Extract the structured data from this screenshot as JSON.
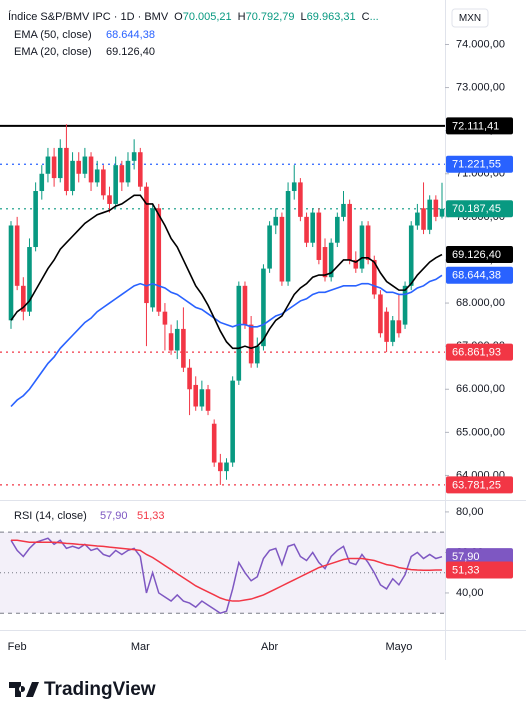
{
  "chart_data": [
    {
      "type": "candlestick",
      "title": "Índice S&P/BMV IPC · 1D · BMV",
      "ohlc_legend": [
        {
          "label": "O",
          "value": "70.005,21"
        },
        {
          "label": "H",
          "value": "70.792,79"
        },
        {
          "label": "L",
          "value": "69.963,31"
        },
        {
          "label": "C",
          "value": "..."
        }
      ],
      "currency": "MXN",
      "up_color": "#089981",
      "down_color": "#f23645",
      "categories": [
        null,
        "Feb",
        null,
        null,
        null,
        null,
        null,
        null,
        null,
        null,
        null,
        null,
        null,
        null,
        null,
        null,
        null,
        null,
        null,
        null,
        null,
        "Mar",
        null,
        null,
        null,
        null,
        null,
        null,
        null,
        null,
        null,
        null,
        null,
        null,
        null,
        null,
        null,
        null,
        null,
        null,
        null,
        null,
        "Abr",
        null,
        null,
        null,
        null,
        null,
        null,
        null,
        null,
        null,
        null,
        null,
        null,
        null,
        null,
        null,
        null,
        null,
        null,
        null,
        null,
        "Mayo",
        null,
        null,
        null,
        null,
        null,
        null,
        null
      ],
      "open": [
        67600,
        69800,
        68400,
        67800,
        69300,
        70600,
        71000,
        71400,
        70900,
        71600,
        70600,
        71300,
        71000,
        71400,
        70800,
        71100,
        70500,
        70300,
        71200,
        70800,
        71300,
        71500,
        70700,
        67900,
        70200,
        67800,
        67300,
        66900,
        67400,
        66500,
        66100,
        65600,
        66000,
        65200,
        64300,
        64100,
        64300,
        66200,
        68400,
        67500,
        66600,
        67000,
        68800,
        69800,
        70000,
        68500,
        70600,
        70800,
        70000,
        69400,
        70100,
        69300,
        68600,
        69400,
        70000,
        70300,
        69000,
        68800,
        69800,
        69000,
        68200,
        67800,
        67100,
        67600,
        67500,
        68400,
        69800,
        70200,
        69700,
        70400,
        70005.21
      ],
      "high": [
        69900,
        70000,
        68600,
        69500,
        70800,
        71200,
        71600,
        71600,
        71800,
        72150,
        71500,
        71500,
        71600,
        71500,
        71300,
        71200,
        70700,
        71400,
        71300,
        71500,
        71800,
        71600,
        70800,
        70300,
        70300,
        68000,
        67500,
        67600,
        67900,
        66700,
        66300,
        66200,
        66100,
        65300,
        64500,
        64400,
        66300,
        68500,
        68500,
        67700,
        67200,
        68900,
        69900,
        70200,
        70100,
        70800,
        71200,
        70900,
        70100,
        70200,
        70200,
        69500,
        69500,
        70100,
        70600,
        70400,
        69200,
        69900,
        69900,
        69100,
        68300,
        67900,
        67700,
        68200,
        68500,
        69900,
        70300,
        70800,
        70500,
        70500,
        70792.79
      ],
      "low": [
        67400,
        68300,
        67600,
        67700,
        69200,
        70400,
        70800,
        70700,
        70800,
        70500,
        70500,
        70800,
        70900,
        70600,
        70700,
        70400,
        70100,
        70200,
        70600,
        70700,
        71100,
        70600,
        67000,
        67800,
        67700,
        66900,
        66800,
        66700,
        66400,
        65400,
        65500,
        65500,
        65400,
        64200,
        63781.25,
        63900,
        64200,
        66100,
        67400,
        66500,
        66500,
        66900,
        68700,
        69600,
        68400,
        68400,
        70400,
        69900,
        69300,
        69300,
        68900,
        68500,
        68500,
        69300,
        69900,
        68900,
        68700,
        68700,
        68900,
        68100,
        67200,
        66861.93,
        67000,
        67200,
        67400,
        68300,
        69700,
        69600,
        69600,
        69900,
        69963.31
      ],
      "close": [
        69800,
        68400,
        67800,
        69300,
        70600,
        71000,
        71400,
        70900,
        71600,
        70600,
        71300,
        71000,
        71400,
        70800,
        71100,
        70500,
        70300,
        71200,
        70800,
        71300,
        71500,
        70700,
        68000,
        70200,
        67800,
        67500,
        66900,
        67400,
        66500,
        66000,
        65600,
        66000,
        65500,
        64300,
        64100,
        64300,
        66200,
        68400,
        67500,
        66600,
        67000,
        68800,
        69800,
        70000,
        68500,
        70600,
        70800,
        70000,
        69400,
        70100,
        69000,
        68600,
        69400,
        70000,
        70300,
        69000,
        68800,
        69800,
        69000,
        68200,
        67300,
        67100,
        67600,
        67300,
        68400,
        69800,
        70100,
        69700,
        70400,
        70000,
        70187.45
      ],
      "series": [
        {
          "name": "EMA (50, close)",
          "color": "#2962ff",
          "last_label": "68.644,38",
          "values": [
            65600,
            65750,
            65850,
            66000,
            66200,
            66400,
            66600,
            66750,
            66950,
            67100,
            67250,
            67400,
            67550,
            67650,
            67800,
            67900,
            68000,
            68100,
            68200,
            68300,
            68400,
            68450,
            68400,
            68450,
            68400,
            68350,
            68250,
            68200,
            68100,
            68000,
            67900,
            67850,
            67750,
            67650,
            67550,
            67500,
            67450,
            67500,
            67500,
            67450,
            67450,
            67500,
            67600,
            67700,
            67750,
            67850,
            67950,
            68050,
            68100,
            68200,
            68250,
            68250,
            68300,
            68350,
            68400,
            68400,
            68400,
            68450,
            68450,
            68400,
            68350,
            68250,
            68250,
            68200,
            68200,
            68250,
            68350,
            68400,
            68500,
            68550,
            68644.38
          ]
        },
        {
          "name": "EMA (20, close)",
          "color": "#000000",
          "last_label": "69.126,40",
          "values": [
            67600,
            67800,
            67900,
            68050,
            68300,
            68550,
            68800,
            69000,
            69250,
            69400,
            69550,
            69700,
            69850,
            69950,
            70050,
            70100,
            70150,
            70250,
            70300,
            70400,
            70500,
            70500,
            70300,
            70300,
            70050,
            69800,
            69500,
            69300,
            69000,
            68700,
            68400,
            68200,
            67950,
            67650,
            67350,
            67100,
            66950,
            66950,
            67000,
            66950,
            67000,
            67150,
            67400,
            67600,
            67700,
            67950,
            68200,
            68350,
            68450,
            68600,
            68650,
            68650,
            68700,
            68850,
            69000,
            69000,
            68950,
            69050,
            69050,
            68950,
            68700,
            68500,
            68400,
            68300,
            68300,
            68450,
            68650,
            68800,
            68950,
            69050,
            69126.4
          ]
        }
      ],
      "price_lines": [
        {
          "value": 72111.41,
          "label": "72.111,41",
          "color": "#000000",
          "style": "solid"
        },
        {
          "value": 71221.55,
          "label": "71.221,55",
          "color": "#2962ff",
          "style": "dotted"
        },
        {
          "value": 70187.45,
          "label": "70.187,45",
          "color": "#089981",
          "style": "dotted"
        },
        {
          "value": 66861.93,
          "label": "66.861,93",
          "color": "#f23645",
          "style": "dotted"
        },
        {
          "value": 63781.25,
          "label": "63.781,25",
          "color": "#f23645",
          "style": "dotted"
        }
      ],
      "ylim": [
        63500,
        74800
      ],
      "yticks": [
        {
          "value": 64000,
          "label": "64.000,00"
        },
        {
          "value": 65000,
          "label": "65.000,00"
        },
        {
          "value": 66000,
          "label": "66.000,00"
        },
        {
          "value": 67000,
          "label": "67.000,00"
        },
        {
          "value": 68000,
          "label": "68.000,00"
        },
        {
          "value": 69000,
          "label": "69.000,00"
        },
        {
          "value": 70000,
          "label": "70.000,00"
        },
        {
          "value": 71000,
          "label": "71.000,00"
        },
        {
          "value": 72000,
          "label": "72.000,00"
        },
        {
          "value": 73000,
          "label": "73.000,00"
        },
        {
          "value": 74000,
          "label": "74.000,00"
        }
      ]
    },
    {
      "type": "line",
      "title": "RSI (14, close)",
      "series": [
        {
          "color": "#7e57c2",
          "last_label": "57,90",
          "values": [
            66,
            61,
            58,
            62,
            65,
            66,
            67,
            64,
            66,
            62,
            63,
            62,
            64,
            61,
            62,
            59,
            58,
            61,
            59,
            61,
            62,
            58,
            40,
            50,
            40,
            38,
            36,
            39,
            36,
            35,
            33,
            36,
            34,
            32,
            30,
            31,
            42,
            55,
            50,
            46,
            48,
            57,
            61,
            62,
            54,
            63,
            64,
            58,
            56,
            60,
            55,
            52,
            58,
            61,
            63,
            55,
            54,
            59,
            55,
            50,
            44,
            42,
            47,
            44,
            49,
            58,
            60,
            57,
            59,
            57,
            57.9
          ]
        },
        {
          "color": "#f23645",
          "last_label": "51,33",
          "values": [
            66,
            66,
            65.5,
            65,
            65,
            65,
            65,
            65,
            64.8,
            64.5,
            64.3,
            64,
            63.8,
            63.5,
            63.2,
            63,
            62.6,
            62.3,
            62,
            61.7,
            61.4,
            61,
            59,
            57.5,
            55.5,
            53.5,
            51.5,
            49.5,
            47.5,
            45.5,
            43.5,
            42,
            40.5,
            39,
            37.5,
            36.5,
            36,
            36,
            36.5,
            37,
            38,
            39,
            40.5,
            42,
            43.5,
            45,
            46.5,
            48,
            49.5,
            51,
            52.5,
            53.5,
            54.5,
            55.5,
            56.5,
            57,
            57,
            57,
            56.5,
            56,
            55,
            54,
            53.5,
            52.5,
            52,
            51.5,
            51.3,
            51.2,
            51.2,
            51.3,
            51.33
          ]
        }
      ],
      "band": [
        30,
        70
      ],
      "levels": [
        70,
        50,
        30
      ],
      "ylim": [
        22.7,
        84.4
      ],
      "yticks": [
        {
          "value": 40,
          "label": "40,00"
        },
        {
          "value": 60,
          "label": "60,00"
        },
        {
          "value": 80,
          "label": "80,00"
        }
      ]
    }
  ],
  "brand": "TradingView"
}
